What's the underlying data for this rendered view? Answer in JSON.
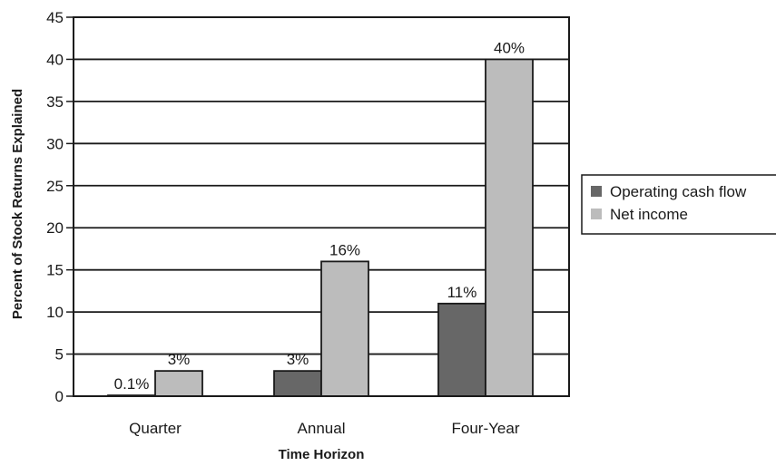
{
  "chart_data": {
    "type": "bar",
    "title": "",
    "xlabel": "Time Horizon",
    "ylabel": "Percent of Stock Returns Explained",
    "categories": [
      "Quarter",
      "Annual",
      "Four-Year"
    ],
    "series": [
      {
        "name": "Operating cash flow",
        "values": [
          0.1,
          3,
          11
        ],
        "labels": [
          "0.1%",
          "3%",
          "11%"
        ],
        "color": "#676767"
      },
      {
        "name": "Net income",
        "values": [
          3,
          16,
          40
        ],
        "labels": [
          "3%",
          "16%",
          "40%"
        ],
        "color": "#bcbcbc"
      }
    ],
    "ylim": [
      0,
      45
    ],
    "yticks": [
      0,
      5,
      10,
      15,
      20,
      25,
      30,
      35,
      40,
      45
    ],
    "grid": true,
    "legend_position": "right"
  }
}
